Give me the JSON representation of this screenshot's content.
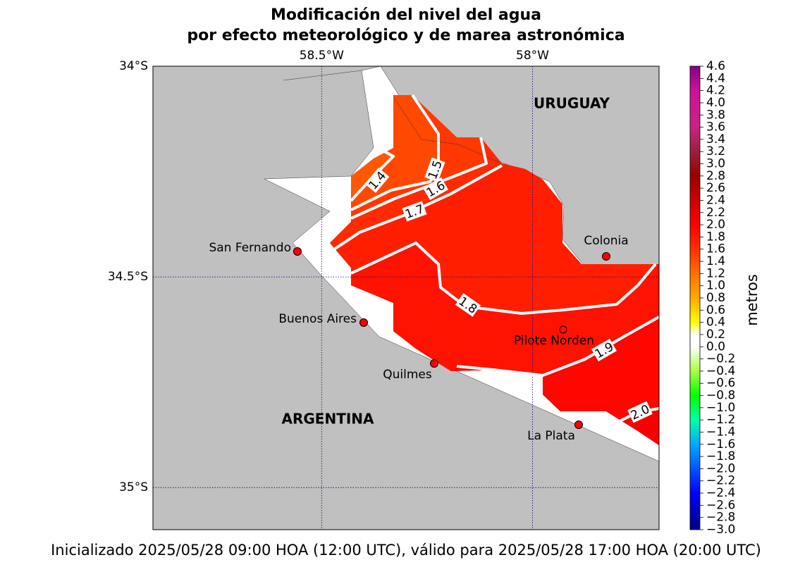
{
  "title": [
    "Modificación del nivel del agua",
    "por efecto meteorológico y de marea astronómica"
  ],
  "footer": "Inicializado 2025/05/28 09:00 HOA (12:00 UTC), válido para 2025/05/28 17:00 HOA (20:00 UTC)",
  "map": {
    "xlim": [
      -58.9,
      -57.7
    ],
    "ylim": [
      -35.1,
      -34
    ],
    "xticks": [
      {
        "value": -58.5,
        "label": "58.5°W"
      },
      {
        "value": -58,
        "label": "58°W"
      }
    ],
    "yticks": [
      {
        "value": -34,
        "label": "34°S"
      },
      {
        "value": -34.5,
        "label": "34.5°S"
      },
      {
        "value": -35,
        "label": "35°S"
      }
    ],
    "grid": true,
    "land_color": "#c0c0c0",
    "grid_color": "#000080",
    "countries": [
      "URUGUAY",
      "ARGENTINA"
    ],
    "stations": [
      "San Fernando",
      "Buenos Aires",
      "Quilmes",
      "Pilote Norden",
      "Colonia",
      "La Plata"
    ],
    "contours": {
      "levels": [
        1.4,
        1.5,
        1.6,
        1.7,
        1.8,
        1.9,
        {
          "value": 2.0,
          "label": "2.0"
        }
      ],
      "color": "#ffffff"
    }
  },
  "colorbar": {
    "label": "metros",
    "lim": [
      -3.0,
      4.6
    ],
    "ticks": [
      4.6,
      4.4,
      4.2,
      {
        "value": 4.0,
        "label": "4.0"
      },
      3.8,
      3.6,
      3.4,
      3.2,
      {
        "value": 3.0,
        "label": "3.0"
      },
      2.8,
      2.6,
      2.4,
      2.2,
      {
        "value": 2.0,
        "label": "2.0"
      },
      1.8,
      1.6,
      1.4,
      1.2,
      {
        "value": 1.0,
        "label": "1.0"
      },
      0.8,
      0.6,
      0.4,
      0.2,
      {
        "value": 0,
        "label": "0.0"
      },
      {
        "value": -0.2,
        "label": "−0.2"
      },
      {
        "value": -0.4,
        "label": "−0.4"
      },
      {
        "value": -0.6,
        "label": "−0.6"
      },
      {
        "value": -0.8,
        "label": "−0.8"
      },
      {
        "value": -1.0,
        "label": "−1.0"
      },
      {
        "value": -1.2,
        "label": "−1.2"
      },
      {
        "value": -1.4,
        "label": "−1.4"
      },
      {
        "value": -1.6,
        "label": "−1.6"
      },
      {
        "value": -1.8,
        "label": "−1.8"
      },
      {
        "value": -2.0,
        "label": "−2.0"
      },
      {
        "value": -2.2,
        "label": "−2.2"
      },
      {
        "value": -2.4,
        "label": "−2.4"
      },
      {
        "value": -2.6,
        "label": "−2.6"
      },
      {
        "value": -2.8,
        "label": "−2.8"
      },
      {
        "value": -3.0,
        "label": "−3.0"
      }
    ],
    "colormap": [
      {
        "value": -3.0,
        "color": "#000080"
      },
      {
        "value": -2.4,
        "color": "#0000ff"
      },
      {
        "value": -1.6,
        "color": "#00aaff"
      },
      {
        "value": -1.2,
        "color": "#00ffaa"
      },
      {
        "value": -0.8,
        "color": "#00ff00"
      },
      {
        "value": -0.4,
        "color": "#aaff44"
      },
      {
        "value": 0,
        "color": "#ffffff"
      },
      {
        "value": 0.2,
        "color": "#ffffff"
      },
      {
        "value": 0.4,
        "color": "#ffff00"
      },
      {
        "value": 0.8,
        "color": "#ffaa00"
      },
      {
        "value": 1.2,
        "color": "#ff7000"
      },
      {
        "value": 1.6,
        "color": "#ff3000"
      },
      {
        "value": 2.0,
        "color": "#ff0000"
      },
      {
        "value": 2.4,
        "color": "#cc0000"
      },
      {
        "value": 2.8,
        "color": "#990000"
      },
      {
        "value": 3.2,
        "color": "#99203c"
      },
      {
        "value": 3.6,
        "color": "#cc2288"
      },
      {
        "value": 4.2,
        "color": "#cc1199"
      },
      {
        "value": 4.6,
        "color": "#880088"
      }
    ]
  }
}
